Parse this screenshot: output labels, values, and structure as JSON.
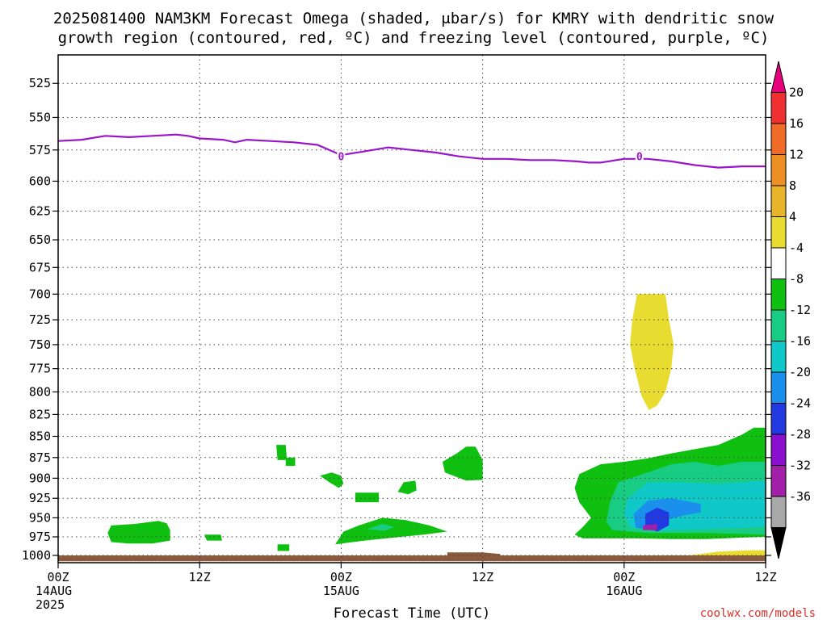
{
  "chart_data": {
    "type": "heatmap",
    "title_line1": "2025081400 NAM3KM Forecast Omega (shaded, μbar/s) for KMRY with dendritic snow",
    "title_line2": "growth region (contoured, red, ºC) and freezing level (contoured, purple, ºC)",
    "xlabel": "Forecast Time (UTC)",
    "ylabel": "",
    "x_ticks": [
      {
        "hour": 0,
        "lines": [
          "00Z",
          "14AUG",
          "2025"
        ]
      },
      {
        "hour": 12,
        "lines": [
          "12Z"
        ]
      },
      {
        "hour": 24,
        "lines": [
          "00Z",
          "15AUG"
        ]
      },
      {
        "hour": 36,
        "lines": [
          "12Z"
        ]
      },
      {
        "hour": 48,
        "lines": [
          "00Z",
          "16AUG"
        ]
      },
      {
        "hour": 60,
        "lines": [
          "12Z"
        ]
      }
    ],
    "xlim": [
      0,
      60
    ],
    "y_ticks": [
      525,
      550,
      575,
      600,
      625,
      650,
      675,
      700,
      725,
      750,
      775,
      800,
      825,
      850,
      875,
      900,
      925,
      950,
      975,
      1000
    ],
    "ylim": [
      505,
      1010
    ],
    "y_scale": "log",
    "grid": true,
    "colorbar": {
      "labels": [
        "20",
        "16",
        "12",
        "8",
        "4",
        "-4",
        "-8",
        "-12",
        "-16",
        "-20",
        "-24",
        "-28",
        "-32",
        "-36"
      ],
      "bins": [
        {
          "color": "#e6007e"
        },
        {
          "color": "#f03030"
        },
        {
          "color": "#f06a28"
        },
        {
          "color": "#ee8f23"
        },
        {
          "color": "#e7b42a"
        },
        {
          "color": "#e8dc30"
        },
        {
          "color": "#ffffff"
        },
        {
          "color": "#10c010"
        },
        {
          "color": "#19cc84"
        },
        {
          "color": "#10c8c8"
        },
        {
          "color": "#1a8fec"
        },
        {
          "color": "#2238e0"
        },
        {
          "color": "#8a10d0"
        },
        {
          "color": "#a21fa8"
        },
        {
          "color": "#a8a8a8"
        },
        {
          "color": "#000000"
        }
      ]
    },
    "freezing_level": {
      "color": "#9a14c9",
      "label": "0",
      "label_points": [
        {
          "x": 24,
          "y": 580
        },
        {
          "x": 49.3,
          "y": 580
        }
      ],
      "points": [
        {
          "x": 0,
          "y": 568
        },
        {
          "x": 2,
          "y": 567
        },
        {
          "x": 4,
          "y": 564
        },
        {
          "x": 6,
          "y": 565
        },
        {
          "x": 8,
          "y": 564
        },
        {
          "x": 10,
          "y": 563
        },
        {
          "x": 11,
          "y": 564
        },
        {
          "x": 12,
          "y": 566
        },
        {
          "x": 14,
          "y": 567
        },
        {
          "x": 15,
          "y": 569
        },
        {
          "x": 16,
          "y": 567
        },
        {
          "x": 18,
          "y": 568
        },
        {
          "x": 20,
          "y": 569
        },
        {
          "x": 22,
          "y": 571
        },
        {
          "x": 24,
          "y": 579
        },
        {
          "x": 26,
          "y": 576
        },
        {
          "x": 28,
          "y": 573
        },
        {
          "x": 30,
          "y": 575
        },
        {
          "x": 32,
          "y": 577
        },
        {
          "x": 34,
          "y": 580
        },
        {
          "x": 36,
          "y": 582
        },
        {
          "x": 38,
          "y": 582
        },
        {
          "x": 40,
          "y": 583
        },
        {
          "x": 42,
          "y": 583
        },
        {
          "x": 44,
          "y": 584
        },
        {
          "x": 45,
          "y": 585
        },
        {
          "x": 46,
          "y": 585
        },
        {
          "x": 48,
          "y": 582
        },
        {
          "x": 50,
          "y": 582
        },
        {
          "x": 52,
          "y": 584
        },
        {
          "x": 54,
          "y": 587
        },
        {
          "x": 56,
          "y": 589
        },
        {
          "x": 58,
          "y": 588
        },
        {
          "x": 60,
          "y": 588
        }
      ]
    },
    "shaded_regions": [
      {
        "color": "#e8dc30",
        "points": [
          [
            49.5,
            700
          ],
          [
            51.5,
            700
          ],
          [
            51.8,
            725
          ],
          [
            52.2,
            750
          ],
          [
            52,
            775
          ],
          [
            51.5,
            800
          ],
          [
            50.8,
            815
          ],
          [
            50.1,
            820
          ],
          [
            49.5,
            805
          ],
          [
            48.9,
            775
          ],
          [
            48.5,
            750
          ],
          [
            48.7,
            725
          ],
          [
            49.1,
            700
          ]
        ]
      },
      {
        "color": "#10c010",
        "points": [
          [
            4.5,
            960
          ],
          [
            6.5,
            958
          ],
          [
            8.5,
            954
          ],
          [
            9.2,
            957
          ],
          [
            9.5,
            966
          ],
          [
            9.5,
            980
          ],
          [
            8,
            984
          ],
          [
            6,
            984
          ],
          [
            4.5,
            982
          ],
          [
            4.2,
            970
          ]
        ]
      },
      {
        "color": "#10c010",
        "points": [
          [
            12.4,
            972
          ],
          [
            13.8,
            972
          ],
          [
            13.9,
            980
          ],
          [
            12.6,
            980
          ]
        ]
      },
      {
        "color": "#10c010",
        "points": [
          [
            18.5,
            860
          ],
          [
            19.3,
            860
          ],
          [
            19.4,
            878
          ],
          [
            18.6,
            878
          ]
        ]
      },
      {
        "color": "#10c010",
        "points": [
          [
            19.3,
            875
          ],
          [
            20.1,
            875
          ],
          [
            20.1,
            885
          ],
          [
            19.3,
            885
          ]
        ]
      },
      {
        "color": "#10c010",
        "points": [
          [
            18.6,
            985
          ],
          [
            19.6,
            985
          ],
          [
            19.6,
            994
          ],
          [
            18.6,
            994
          ]
        ]
      },
      {
        "color": "#10c010",
        "points": [
          [
            23.2,
            893
          ],
          [
            24,
            897
          ],
          [
            24.2,
            907
          ],
          [
            23.8,
            912
          ],
          [
            23,
            905
          ],
          [
            22.2,
            897
          ]
        ]
      },
      {
        "color": "#10c010",
        "points": [
          [
            25.2,
            918
          ],
          [
            27.2,
            918
          ],
          [
            27.2,
            930
          ],
          [
            25.2,
            930
          ]
        ]
      },
      {
        "color": "#10c010",
        "points": [
          [
            24.2,
            968
          ],
          [
            25.5,
            960
          ],
          [
            27.5,
            950
          ],
          [
            29.5,
            953
          ],
          [
            31.5,
            960
          ],
          [
            33,
            968
          ],
          [
            31,
            972
          ],
          [
            28.5,
            976
          ],
          [
            26,
            980
          ],
          [
            23.5,
            985
          ]
        ]
      },
      {
        "color": "#10c010",
        "points": [
          [
            29.3,
            905
          ],
          [
            30.3,
            903
          ],
          [
            30.4,
            915
          ],
          [
            29.7,
            920
          ],
          [
            28.8,
            917
          ]
        ]
      },
      {
        "color": "#10c010",
        "points": [
          [
            32.6,
            880
          ],
          [
            33.8,
            870
          ],
          [
            34.6,
            862
          ],
          [
            35.4,
            862
          ],
          [
            36,
            878
          ],
          [
            36,
            902
          ],
          [
            34.6,
            903
          ],
          [
            32.8,
            893
          ]
        ]
      },
      {
        "color": "#10c010",
        "points": [
          [
            44.2,
            895
          ],
          [
            46,
            883
          ],
          [
            48,
            880
          ],
          [
            50,
            876
          ],
          [
            52,
            870
          ],
          [
            54,
            865
          ],
          [
            56,
            860
          ],
          [
            58,
            848
          ],
          [
            59,
            840
          ],
          [
            60,
            840
          ],
          [
            60,
            975
          ],
          [
            58,
            976
          ],
          [
            55,
            978
          ],
          [
            52,
            978
          ],
          [
            49,
            977
          ],
          [
            46,
            977
          ],
          [
            44.5,
            977
          ],
          [
            43.8,
            972
          ],
          [
            44.5,
            962
          ],
          [
            45.2,
            950
          ],
          [
            44.2,
            930
          ],
          [
            43.8,
            912
          ]
        ]
      },
      {
        "color": "#19cc84",
        "points": [
          [
            47.5,
            905
          ],
          [
            50,
            893
          ],
          [
            52,
            883
          ],
          [
            54,
            880
          ],
          [
            56,
            885
          ],
          [
            58,
            880
          ],
          [
            60,
            880
          ],
          [
            60,
            972
          ],
          [
            55,
            970
          ],
          [
            50,
            970
          ],
          [
            47,
            966
          ],
          [
            46.5,
            955
          ],
          [
            46.8,
            930
          ]
        ]
      },
      {
        "color": "#19cc84",
        "points": [
          [
            26.2,
            965
          ],
          [
            27.5,
            958
          ],
          [
            28.5,
            962
          ],
          [
            27.7,
            967
          ]
        ]
      },
      {
        "color": "#10c8c8",
        "points": [
          [
            48.3,
            925
          ],
          [
            50,
            905
          ],
          [
            53,
            905
          ],
          [
            56,
            907
          ],
          [
            60,
            903
          ],
          [
            60,
            962
          ],
          [
            55,
            965
          ],
          [
            51,
            967
          ],
          [
            48.5,
            963
          ],
          [
            48,
            945
          ]
        ]
      },
      {
        "color": "#1a8fec",
        "points": [
          [
            48.8,
            945
          ],
          [
            50,
            928
          ],
          [
            52,
            925
          ],
          [
            54.5,
            932
          ],
          [
            54.5,
            943
          ],
          [
            53,
            947
          ],
          [
            51,
            955
          ],
          [
            50.5,
            967
          ],
          [
            49,
            963
          ]
        ]
      },
      {
        "color": "#2238e0",
        "points": [
          [
            49.8,
            945
          ],
          [
            50.8,
            937
          ],
          [
            51.8,
            943
          ],
          [
            51.8,
            960
          ],
          [
            50.8,
            968
          ],
          [
            49.8,
            962
          ]
        ]
      },
      {
        "color": "#a21fa8",
        "points": [
          [
            49.6,
            960
          ],
          [
            50.8,
            958
          ],
          [
            50.8,
            966
          ],
          [
            49.6,
            966
          ]
        ]
      },
      {
        "color": "#e8dc30",
        "points": [
          [
            53.5,
            1000
          ],
          [
            56,
            995
          ],
          [
            58.5,
            993
          ],
          [
            60,
            993
          ],
          [
            60,
            1003
          ],
          [
            53.5,
            1003
          ]
        ]
      },
      {
        "color": "#8b5a3c",
        "points": [
          [
            0,
            1000
          ],
          [
            60,
            1000
          ],
          [
            60,
            1008
          ],
          [
            0,
            1008
          ]
        ]
      },
      {
        "color": "#8b5a3c",
        "points": [
          [
            33,
            996
          ],
          [
            35,
            996
          ],
          [
            36,
            996
          ],
          [
            37.5,
            998
          ],
          [
            37.5,
            1000
          ],
          [
            33,
            1000
          ]
        ]
      }
    ]
  },
  "watermark": "coolwx.com/models"
}
